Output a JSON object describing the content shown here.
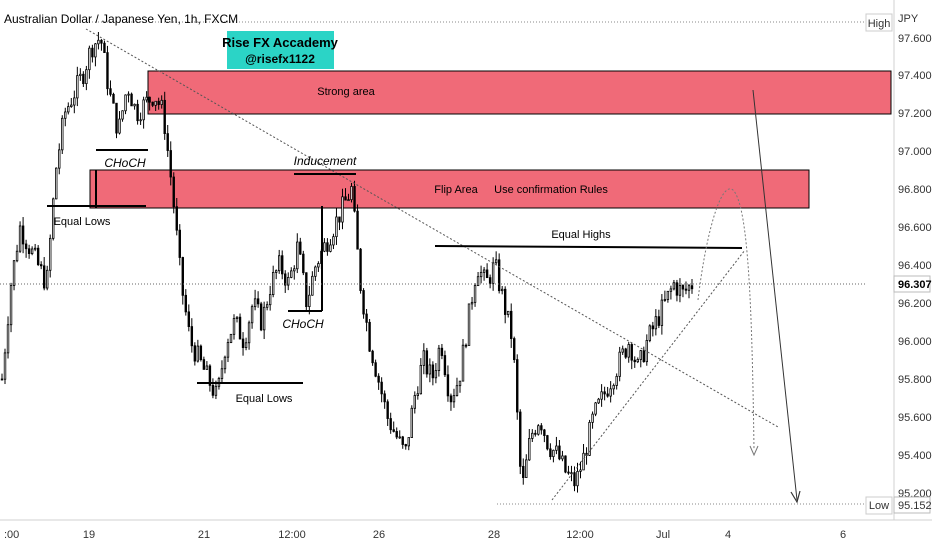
{
  "header": {
    "symbol_title": "Australian Dollar / Japanese Yen, 1h, FXCM",
    "currency": "JPY"
  },
  "watermark": {
    "line1": "Rise FX Accademy",
    "line2": "@risefx1122",
    "bg": "#2bd4c6"
  },
  "price_axis": {
    "high_label": "High",
    "high_value": "97.600",
    "low_label": "Low",
    "low_value": "95.152",
    "last_value": "96.307"
  },
  "chart_data": {
    "type": "candlestick",
    "ylim": [
      95.15,
      97.66
    ],
    "y_ticks": [
      "97.600",
      "97.400",
      "97.200",
      "97.000",
      "96.800",
      "96.600",
      "96.400",
      "96.200",
      "96.000",
      "95.800",
      "95.600",
      "95.400",
      "95.200"
    ],
    "x_ticks": [
      ":00",
      "19",
      "21",
      "12:00",
      "26",
      "28",
      "12:00",
      "Jul",
      "4",
      "6"
    ],
    "high": 97.6,
    "low": 95.152,
    "last": 96.307,
    "colors": {
      "up": "#000000",
      "down": "#000000",
      "zone": "#f06a78",
      "annotation_line": "#000000"
    },
    "zones": [
      {
        "label": "Strong area",
        "top": 97.42,
        "bottom": 97.2
      },
      {
        "label": "Flip Area",
        "label2": "Use confirmation Rules",
        "top": 96.9,
        "bottom": 96.71
      }
    ],
    "annotations": [
      "Equal Lows",
      "CHoCH",
      "Inducement",
      "CHoCH",
      "Equal Lows",
      "Equal Highs"
    ],
    "path_close": [
      95.8,
      96.3,
      96.6,
      96.5,
      96.4,
      96.3,
      96.9,
      97.2,
      97.3,
      97.4,
      97.55,
      97.6,
      97.3,
      97.1,
      97.35,
      97.2,
      97.25,
      97.3,
      97.2,
      96.8,
      96.3,
      96.0,
      95.9,
      95.8,
      95.7,
      96.0,
      96.1,
      96.0,
      96.2,
      96.1,
      96.3,
      96.4,
      96.3,
      96.5,
      96.2,
      96.4,
      96.5,
      96.6,
      96.7,
      96.8,
      96.3,
      96.0,
      95.8,
      95.6,
      95.5,
      95.4,
      95.7,
      95.9,
      95.8,
      96.0,
      95.7,
      95.8,
      96.1,
      96.4,
      96.3,
      96.4,
      96.2,
      96.0,
      95.2,
      95.5,
      95.6,
      95.45,
      95.4,
      95.3,
      95.25,
      95.4,
      95.6,
      95.7,
      95.8,
      95.9,
      96.0,
      95.85,
      96.0,
      96.1,
      96.2,
      96.3,
      96.25,
      96.3
    ]
  }
}
